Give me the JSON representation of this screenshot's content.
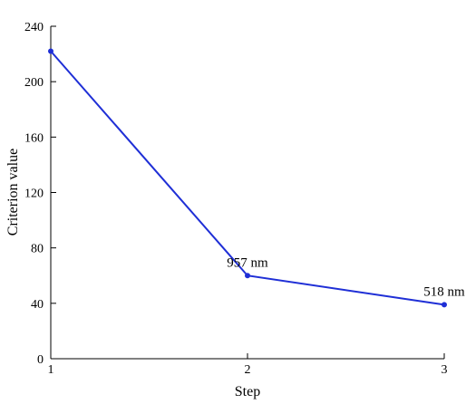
{
  "chart_data": {
    "type": "line",
    "title": "",
    "xlabel": "Step",
    "ylabel": "Criterion value",
    "x": [
      1,
      2,
      3
    ],
    "series": [
      {
        "values": [
          222,
          60,
          39
        ],
        "color": "#1f2fd6"
      }
    ],
    "xlim": [
      1,
      3
    ],
    "ylim": [
      0,
      240
    ],
    "xticks": [
      "1",
      "2",
      "3"
    ],
    "yticks": [
      "0",
      "40",
      "80",
      "120",
      "160",
      "200",
      "240"
    ],
    "annotations": [
      {
        "x": 2,
        "y": 60,
        "text": "957 nm"
      },
      {
        "x": 3,
        "y": 39,
        "text": "518 nm"
      }
    ],
    "grid": false,
    "legend": "none"
  }
}
